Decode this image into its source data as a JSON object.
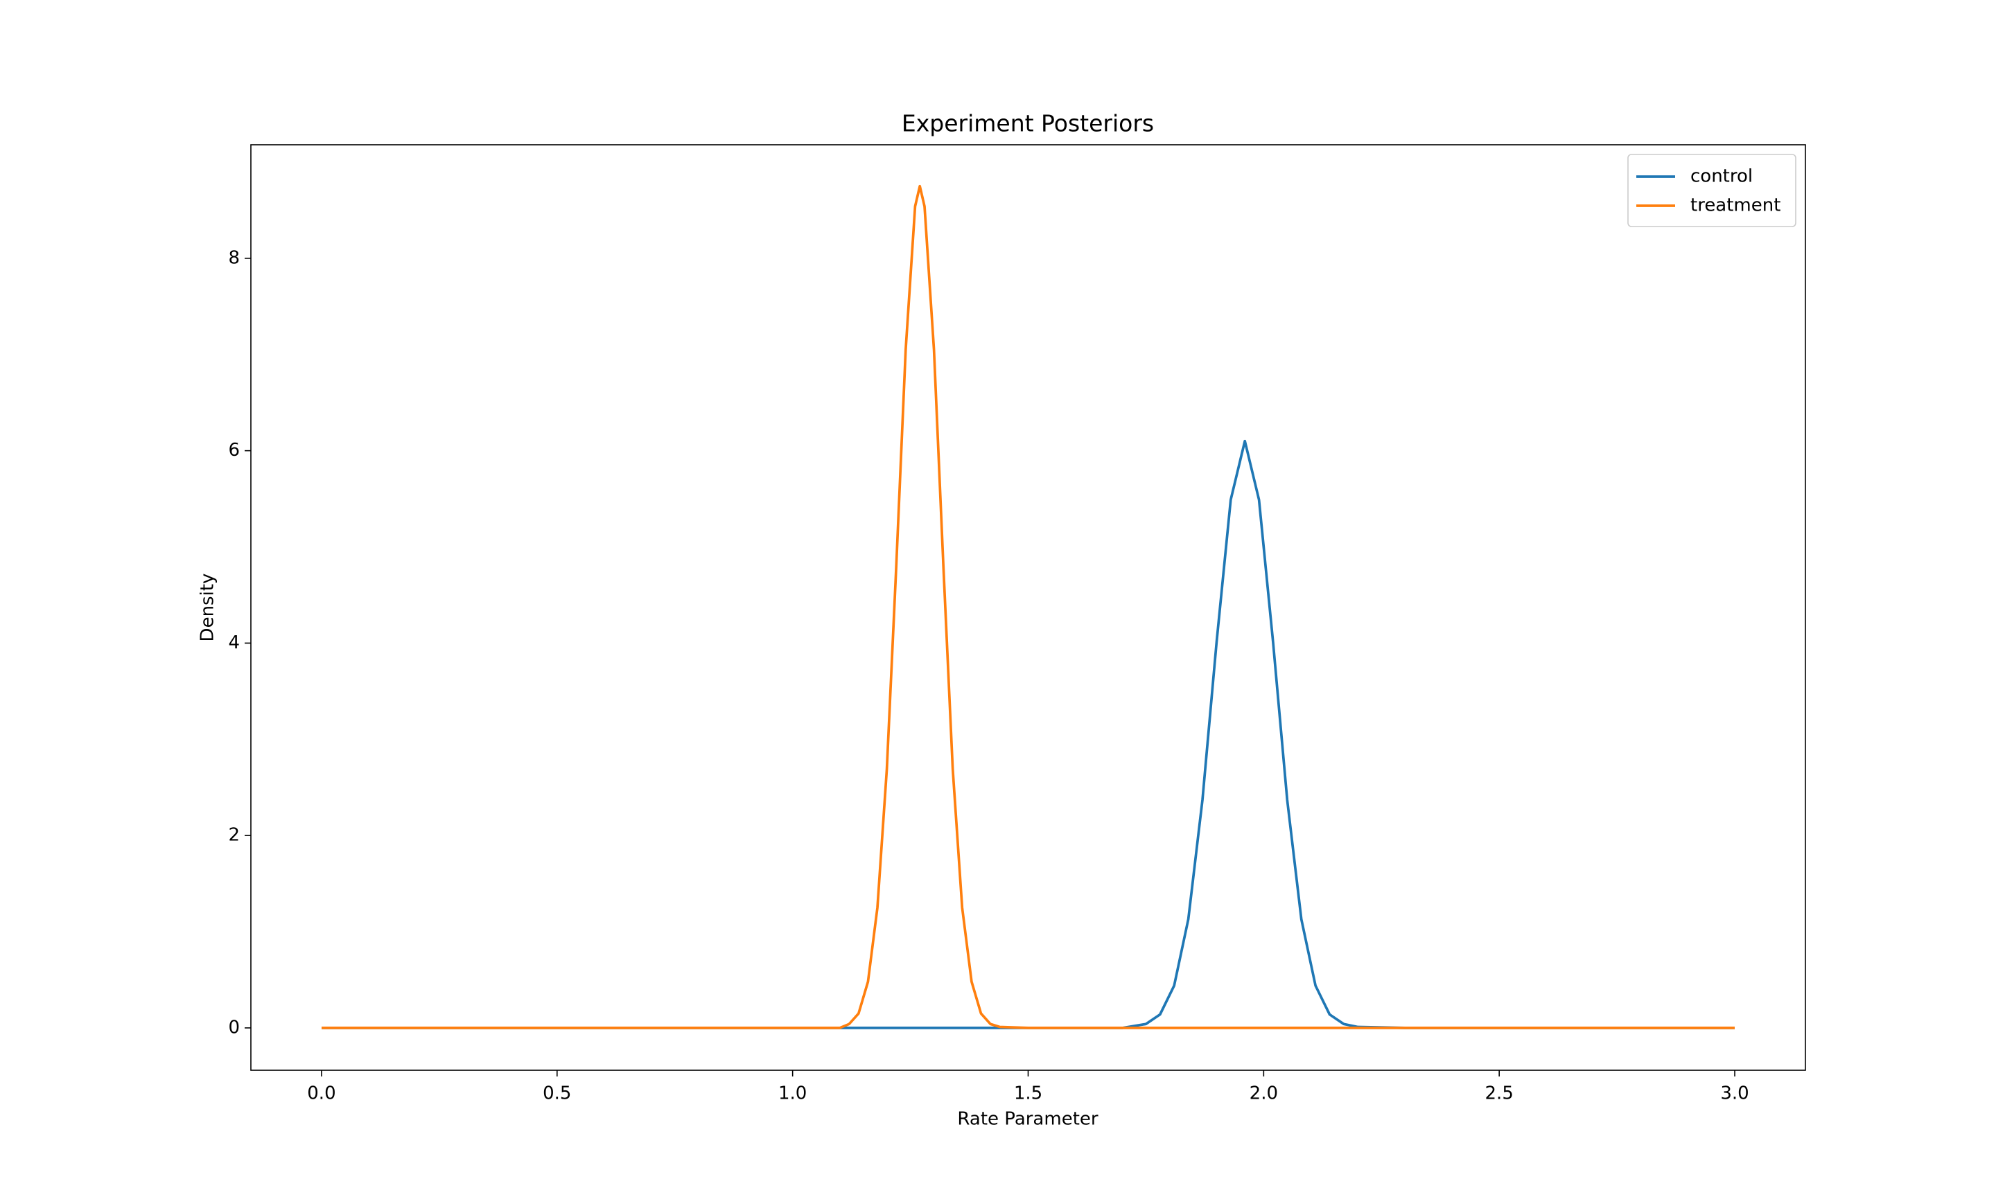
{
  "chart_data": {
    "type": "line",
    "title": "Experiment Posteriors",
    "x_label": "Rate Parameter",
    "y_label": "Density",
    "x": [
      0,
      0.5,
      1.0,
      1.1,
      1.12,
      1.14,
      1.16,
      1.18,
      1.2,
      1.22,
      1.24,
      1.26,
      1.27,
      1.28,
      1.3,
      1.32,
      1.34,
      1.36,
      1.38,
      1.4,
      1.42,
      1.44,
      1.5,
      1.6,
      1.7,
      1.75,
      1.78,
      1.81,
      1.84,
      1.87,
      1.9,
      1.93,
      1.96,
      1.99,
      2.02,
      2.05,
      2.08,
      2.11,
      2.14,
      2.17,
      2.2,
      2.3,
      2.5,
      3.0
    ],
    "series": [
      {
        "name": "control",
        "color": "#1f77b4",
        "values": [
          0,
          0,
          0,
          0,
          0,
          0,
          0,
          0,
          0,
          0,
          0,
          0,
          0,
          0,
          0,
          0,
          0,
          0,
          0,
          0,
          0,
          0,
          0,
          0,
          0,
          0.04,
          0.14,
          0.44,
          1.13,
          2.37,
          4.01,
          5.49,
          6.1,
          5.49,
          4.01,
          2.37,
          1.13,
          0.44,
          0.14,
          0.04,
          0.01,
          0,
          0,
          0
        ]
      },
      {
        "name": "treatment",
        "color": "#ff7f0e",
        "values": [
          0,
          0,
          0,
          0,
          0.04,
          0.15,
          0.48,
          1.25,
          2.69,
          4.8,
          7.05,
          8.54,
          8.75,
          8.54,
          7.05,
          4.8,
          2.69,
          1.25,
          0.48,
          0.15,
          0.04,
          0.01,
          0,
          0,
          0,
          0,
          0,
          0,
          0,
          0,
          0,
          0,
          0,
          0,
          0,
          0,
          0,
          0,
          0,
          0,
          0,
          0,
          0,
          0
        ]
      }
    ],
    "xlim": [
      -0.15,
      3.15
    ],
    "ylim": [
      -0.44,
      9.18
    ],
    "xticks": [
      {
        "value": 0,
        "label": "0.0"
      },
      0.5,
      {
        "value": 1,
        "label": "1.0"
      },
      1.5,
      {
        "value": 2,
        "label": "2.0"
      },
      2.5,
      {
        "value": 3,
        "label": "3.0"
      }
    ],
    "yticks": [
      0,
      2,
      4,
      6,
      8
    ],
    "grid": false,
    "legend": "upper right"
  }
}
